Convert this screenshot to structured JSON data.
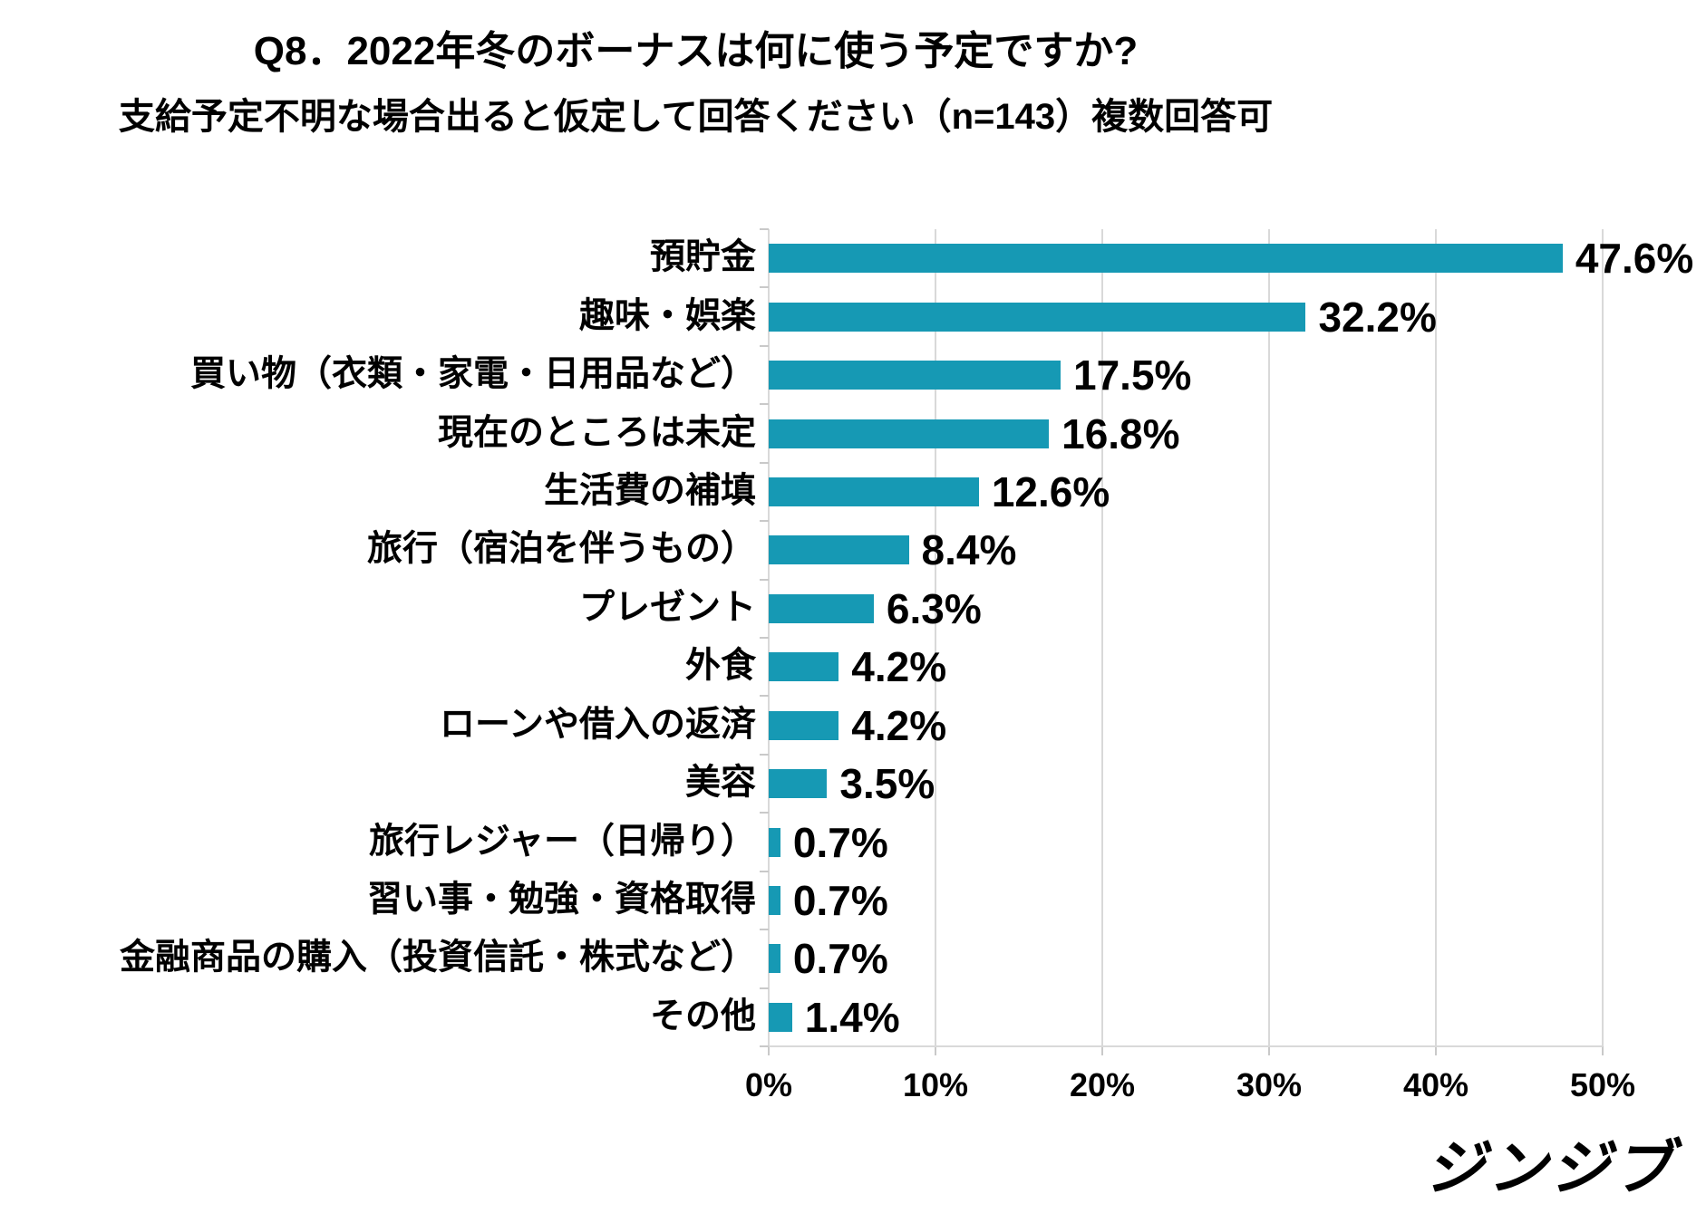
{
  "chart_data": {
    "type": "bar",
    "orientation": "horizontal",
    "title": "Q8．2022年冬のボーナスは何に使う予定ですか?",
    "subtitle": "支給予定不明な場合出ると仮定して回答ください（n=143）複数回答可",
    "categories": [
      "預貯金",
      "趣味・娯楽",
      "買い物（衣類・家電・日用品など）",
      "現在のところは未定",
      "生活費の補填",
      "旅行（宿泊を伴うもの）",
      "プレゼント",
      "外食",
      "ローンや借入の返済",
      "美容",
      "旅行レジャー（日帰り）",
      "習い事・勉強・資格取得",
      "金融商品の購入（投資信託・株式など）",
      "その他"
    ],
    "values": [
      47.6,
      32.2,
      17.5,
      16.8,
      12.6,
      8.4,
      6.3,
      4.2,
      4.2,
      3.5,
      0.7,
      0.7,
      0.7,
      1.4
    ],
    "value_labels": [
      "47.6%",
      "32.2%",
      "17.5%",
      "16.8%",
      "12.6%",
      "8.4%",
      "6.3%",
      "4.2%",
      "4.2%",
      "3.5%",
      "0.7%",
      "0.7%",
      "0.7%",
      "1.4%"
    ],
    "xlabel": "",
    "ylabel": "",
    "xlim": [
      0,
      50
    ],
    "x_ticks": [
      0,
      10,
      20,
      30,
      40,
      50
    ],
    "x_tick_labels": [
      "0%",
      "10%",
      "20%",
      "30%",
      "40%",
      "50%"
    ],
    "grid": "vertical-only",
    "legend": "none",
    "bar_color": "#1699B4"
  },
  "colors": {
    "bar": "#1699B4",
    "gridline": "#D9D9D9",
    "axis": "#C9C9C9",
    "text": "#000000"
  },
  "footer": {
    "logo_text": "ジンジブ"
  }
}
